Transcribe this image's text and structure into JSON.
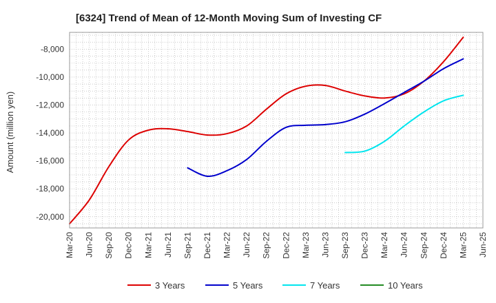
{
  "chart_data": {
    "type": "line",
    "title": "[6324]  Trend of Mean of 12-Month Moving Sum of Investing CF",
    "xlabel": "",
    "ylabel": "Amount (million yen)",
    "ylim": [
      -20800,
      -6800
    ],
    "yticks": [
      -8000,
      -10000,
      -12000,
      -14000,
      -16000,
      -18000,
      -20000
    ],
    "ytick_labels": [
      "-8,000",
      "-10,000",
      "-12,000",
      "-14,000",
      "-16,000",
      "-18,000",
      "-20,000"
    ],
    "x_categories": [
      "Mar-20",
      "Jun-20",
      "Sep-20",
      "Dec-20",
      "Mar-21",
      "Jun-21",
      "Sep-21",
      "Dec-21",
      "Mar-22",
      "Jun-22",
      "Sep-22",
      "Dec-22",
      "Mar-23",
      "Jun-23",
      "Sep-23",
      "Dec-23",
      "Mar-24",
      "Jun-24",
      "Sep-24",
      "Dec-24",
      "Mar-25",
      "Jun-25"
    ],
    "grid": true,
    "legend_position": "bottom",
    "series": [
      {
        "name": "3 Years",
        "color": "#dd0000",
        "values": [
          -20500,
          -18800,
          -16400,
          -14500,
          -13800,
          -13700,
          -13900,
          -14150,
          -14050,
          -13500,
          -12300,
          -11200,
          -10650,
          -10600,
          -11000,
          -11350,
          -11500,
          -11200,
          -10300,
          -8900,
          -7150,
          null
        ]
      },
      {
        "name": "5 Years",
        "color": "#0000cc",
        "values": [
          null,
          null,
          null,
          null,
          null,
          null,
          -16500,
          -17100,
          -16700,
          -15900,
          -14600,
          -13600,
          -13450,
          -13400,
          -13200,
          -12650,
          -11900,
          -11100,
          -10300,
          -9400,
          -8700,
          null
        ]
      },
      {
        "name": "7 Years",
        "color": "#00e5ee",
        "values": [
          null,
          null,
          null,
          null,
          null,
          null,
          null,
          null,
          null,
          null,
          null,
          null,
          null,
          null,
          -15400,
          -15300,
          -14600,
          -13500,
          -12500,
          -11700,
          -11300,
          null
        ]
      },
      {
        "name": "10 Years",
        "color": "#228b22",
        "values": [
          null,
          null,
          null,
          null,
          null,
          null,
          null,
          null,
          null,
          null,
          null,
          null,
          null,
          null,
          null,
          null,
          null,
          null,
          null,
          null,
          null,
          null
        ]
      }
    ]
  }
}
